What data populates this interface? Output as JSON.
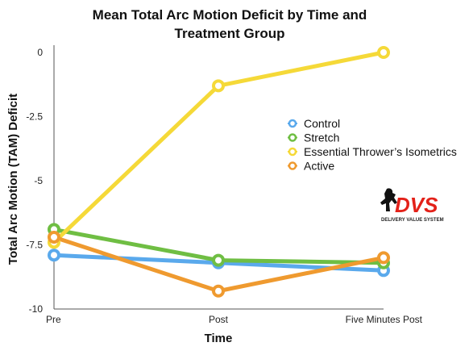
{
  "chart_data": {
    "type": "line",
    "title": [
      "Mean Total Arc Motion Deficit by Time and",
      "Treatment Group"
    ],
    "xlabel": "Time",
    "ylabel": "Total Arc Motion (TAM) Deficit",
    "categories": [
      "Pre",
      "Post",
      "Five Minutes Post"
    ],
    "ylim": [
      -10,
      0
    ],
    "yticks": [
      0,
      -2.5,
      -5,
      -7.5,
      -10
    ],
    "ytick_labels": [
      "0",
      "-2.5",
      "-5",
      "-7.5",
      "-10"
    ],
    "grid": false,
    "legend_position": "right",
    "series": [
      {
        "name": "Control",
        "color": "#5aa9ec",
        "values": [
          -7.9,
          -8.2,
          -8.5
        ]
      },
      {
        "name": "Stretch",
        "color": "#6fbe43",
        "values": [
          -6.9,
          -8.1,
          -8.2
        ]
      },
      {
        "name": "Essential Thrower’s Isometrics",
        "color": "#f5d938",
        "values": [
          -7.4,
          -1.3,
          0
        ]
      },
      {
        "name": "Active",
        "color": "#ef9a2f",
        "values": [
          -7.2,
          -9.3,
          -8.0
        ]
      }
    ]
  },
  "logo": {
    "name": "dvs-logo-icon",
    "text": "DVS",
    "subtext": "DELIVERY VALUE SYSTEM",
    "color": "#e32119"
  }
}
